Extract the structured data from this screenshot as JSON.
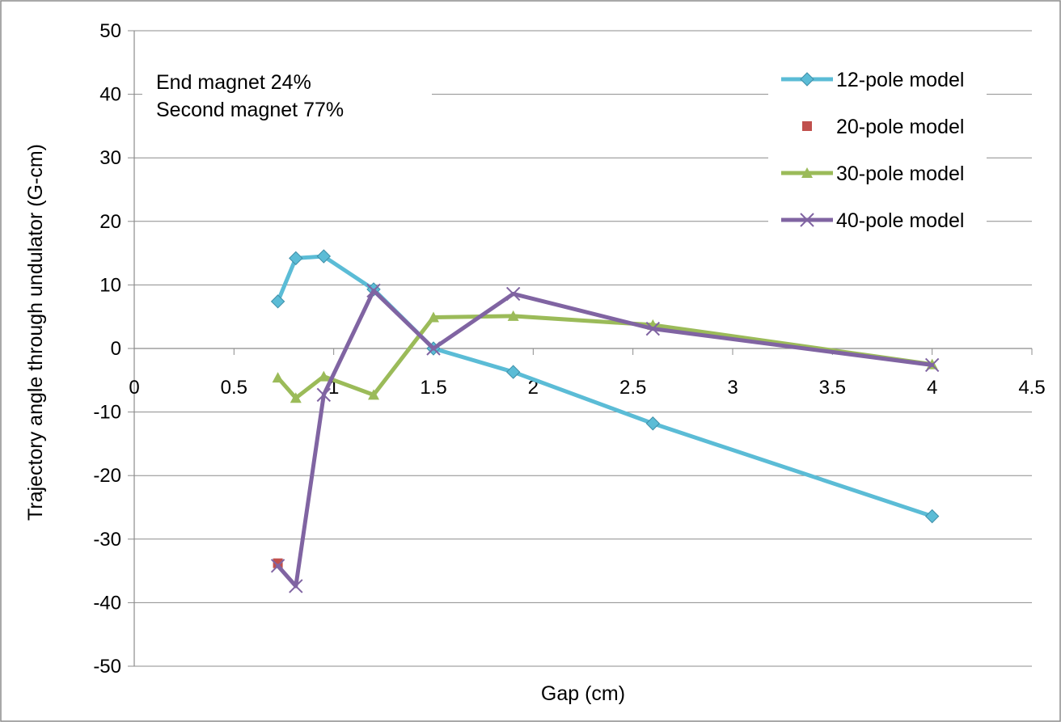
{
  "chart_data": {
    "type": "line",
    "title": "",
    "xlabel": "Gap (cm)",
    "ylabel": "Trajectory angle through undulator (G-cm)",
    "xlim": [
      0,
      4.5
    ],
    "ylim": [
      -50,
      50
    ],
    "xticks": [
      0,
      0.5,
      1,
      1.5,
      2,
      2.5,
      3,
      3.5,
      4,
      4.5
    ],
    "xtick_labels": [
      "0",
      "0.5",
      "1",
      "1.5",
      "2",
      "2.5",
      "3",
      "3.5",
      "4",
      "4.5"
    ],
    "yticks": [
      50,
      40,
      30,
      20,
      10,
      0,
      -10,
      -20,
      -30,
      -40,
      -50
    ],
    "ytick_labels": [
      "50",
      "40",
      "30",
      "20",
      "10",
      "0",
      "-10",
      "-20",
      "-30",
      "-40",
      "-50"
    ],
    "grid": "horizontal",
    "legend_position": "top-right",
    "annotations": [
      "End magnet 24%",
      "Second magnet 77%"
    ],
    "series": [
      {
        "name": "12-pole model",
        "color": "#5BBCD6",
        "marker": "diamond",
        "points": [
          [
            0.72,
            7.4
          ],
          [
            0.81,
            14.2
          ],
          [
            0.95,
            14.5
          ],
          [
            1.2,
            9.3
          ],
          [
            1.5,
            0
          ],
          [
            1.9,
            -3.7
          ],
          [
            2.6,
            -11.8
          ],
          [
            4.0,
            -26.4
          ]
        ]
      },
      {
        "name": "20-pole model",
        "color": "#C0504D",
        "marker": "square",
        "points": [
          [
            0.72,
            -33.8
          ]
        ]
      },
      {
        "name": "30-pole model",
        "color": "#9BBB59",
        "marker": "triangle",
        "points": [
          [
            0.72,
            -4.6
          ],
          [
            0.81,
            -7.8
          ],
          [
            0.95,
            -4.4
          ],
          [
            1.2,
            -7.3
          ],
          [
            1.5,
            4.9
          ],
          [
            1.9,
            5.1
          ],
          [
            2.6,
            3.7
          ],
          [
            4.0,
            -2.5
          ]
        ]
      },
      {
        "name": "40-pole model",
        "color": "#8064A2",
        "marker": "x",
        "points": [
          [
            0.72,
            -34.2
          ],
          [
            0.81,
            -37.4
          ],
          [
            0.95,
            -7.3
          ],
          [
            1.2,
            9.1
          ],
          [
            1.5,
            0
          ],
          [
            1.9,
            8.6
          ],
          [
            2.6,
            3.1
          ],
          [
            4.0,
            -2.6
          ]
        ]
      }
    ]
  }
}
